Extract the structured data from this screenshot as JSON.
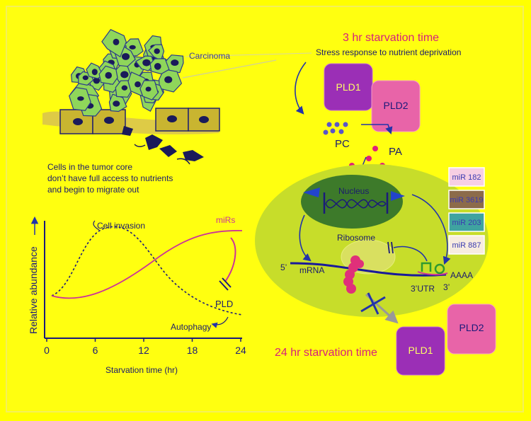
{
  "left_panel": {
    "carcinoma_label": "Carcinoma",
    "caption_lines": [
      "Cells in the tumor core",
      "don’t have full access to nutrients",
      "and begin to migrate out"
    ]
  },
  "plot": {
    "ylabel": "Relative abundance",
    "xlabel": "Starvation time (hr)",
    "x_ticks": [
      "0",
      "6",
      "12",
      "18",
      "24"
    ],
    "cell_invasion_label": "Cell invasion",
    "mirs_label": "miRs",
    "pld_label": "PLD",
    "autophagy_label": "Autophagy",
    "colors": {
      "mirs": "#cc3399",
      "pld": "#1a1a7a",
      "axis": "#1a1a7a"
    }
  },
  "right_panel": {
    "title_3hr": "3 hr starvation time",
    "subtitle_3hr": "Stress response to nutrient deprivation",
    "pld1": "PLD1",
    "pld2": "PLD2",
    "pc": "PC",
    "pa": "PA",
    "nucleus": "Nucleus",
    "ribosome": "Ribosome",
    "five_prime": "5’",
    "mrna": "mRNA",
    "utr": "3’UTR",
    "three_prime": "3’",
    "polya": "AAAA",
    "title_24hr": "24 hr starvation time",
    "pld1_bottom": "PLD1",
    "pld2_bottom": "PLD2",
    "mirna_legend": [
      {
        "label": "miR 182",
        "color": "#f7cfe3"
      },
      {
        "label": "miR 3619",
        "color": "#8c6b4a"
      },
      {
        "label": "miR 203",
        "color": "#3fa3a0"
      },
      {
        "label": "miR 887",
        "color": "#f7ece0"
      }
    ],
    "colors": {
      "pld1": "#9b2fb6",
      "pld2": "#e864a8",
      "title": "#d6207c",
      "nucleus": "#3d7a2a",
      "cell": "#c7dd2a"
    }
  }
}
